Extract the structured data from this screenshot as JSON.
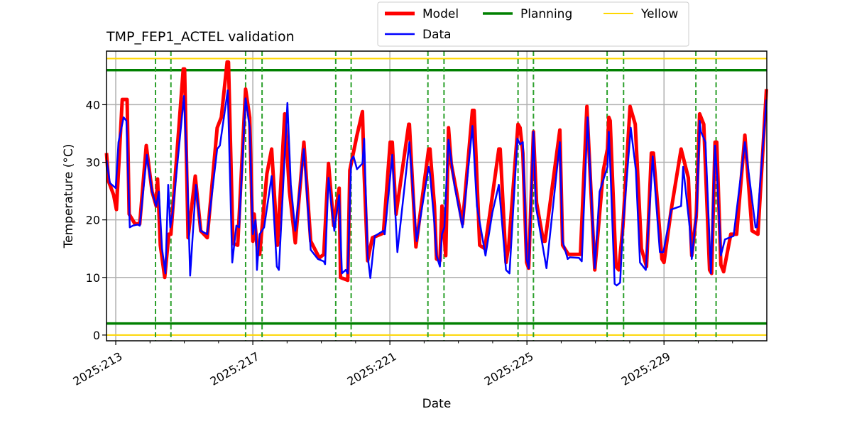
{
  "chart_data": {
    "type": "line",
    "title": "TMP_FEP1_ACTEL validation",
    "xlabel": "Date",
    "ylabel": "Temperature (°C)",
    "xlim": [
      212.73,
      232.0
    ],
    "ylim": [
      -1.0,
      49.3
    ],
    "grid": true,
    "legend_placement": "top-center-outside",
    "x_ticks": [
      {
        "value": 213,
        "label": "2025:213"
      },
      {
        "value": 217,
        "label": "2025:217"
      },
      {
        "value": 221,
        "label": "2025:221"
      },
      {
        "value": 225,
        "label": "2025:225"
      },
      {
        "value": 229,
        "label": "2025:229"
      }
    ],
    "x_minor_ticks": [
      213,
      214,
      215,
      216,
      217,
      218,
      219,
      220,
      221,
      222,
      223,
      224,
      225,
      226,
      227,
      228,
      229,
      230,
      231
    ],
    "y_ticks": [
      {
        "value": 0,
        "label": "0"
      },
      {
        "value": 10,
        "label": "10"
      },
      {
        "value": 20,
        "label": "20"
      },
      {
        "value": 30,
        "label": "30"
      },
      {
        "value": 40,
        "label": "40"
      }
    ],
    "legend": [
      {
        "name": "Model",
        "color": "#ff0000"
      },
      {
        "name": "Planning",
        "color": "#008000"
      },
      {
        "name": "Yellow",
        "color": "#ffd700"
      },
      {
        "name": "Data",
        "color": "#0000ff"
      }
    ],
    "hlines": [
      {
        "series": "Planning",
        "value": 46.0,
        "color": "#008000"
      },
      {
        "series": "Planning",
        "value": 2.0,
        "color": "#008000"
      },
      {
        "series": "Yellow",
        "value": 48.0,
        "color": "#ffd700"
      },
      {
        "series": "Yellow",
        "value": 0.0,
        "color": "#ffd700"
      }
    ],
    "vlines_dashed": {
      "color": "#2ca02c",
      "x": [
        214.16,
        214.61,
        216.79,
        217.27,
        219.42,
        219.87,
        222.11,
        222.58,
        224.74,
        225.19,
        227.34,
        227.82,
        229.93,
        230.52
      ]
    },
    "series": [
      {
        "name": "Model",
        "color": "#ff0000",
        "x": [
          212.73,
          212.79,
          212.94,
          213.02,
          213.19,
          213.33,
          213.39,
          213.56,
          213.7,
          213.89,
          214.06,
          214.18,
          214.22,
          214.3,
          214.43,
          214.55,
          214.61,
          214.97,
          215.01,
          215.11,
          215.32,
          215.48,
          215.67,
          215.96,
          216.08,
          216.25,
          216.29,
          216.42,
          216.56,
          216.79,
          216.91,
          217.0,
          217.04,
          217.12,
          217.2,
          217.41,
          217.55,
          217.72,
          217.93,
          218.07,
          218.24,
          218.49,
          218.69,
          218.94,
          219.07,
          219.21,
          219.36,
          219.52,
          219.56,
          219.77,
          219.83,
          220.04,
          220.2,
          220.25,
          220.35,
          220.49,
          220.81,
          221.01,
          221.07,
          221.18,
          221.55,
          221.57,
          221.76,
          222.13,
          222.17,
          222.3,
          222.36,
          222.46,
          222.52,
          222.63,
          222.71,
          222.79,
          223.12,
          223.41,
          223.46,
          223.62,
          223.77,
          223.97,
          224.18,
          224.22,
          224.39,
          224.47,
          224.74,
          224.8,
          224.88,
          224.99,
          225.05,
          225.19,
          225.28,
          225.48,
          225.53,
          225.96,
          226.04,
          226.21,
          226.56,
          226.75,
          226.98,
          227.23,
          227.35,
          227.39,
          227.43,
          227.6,
          227.68,
          227.8,
          228.01,
          228.16,
          228.34,
          228.49,
          228.63,
          228.69,
          228.94,
          229.0,
          229.21,
          229.5,
          229.71,
          229.81,
          229.94,
          230.04,
          230.16,
          230.33,
          230.39,
          230.49,
          230.54,
          230.66,
          230.74,
          230.95,
          231.12,
          231.36,
          231.57,
          231.74,
          231.99
        ],
        "y": [
          31.6,
          26.7,
          24.3,
          21.8,
          40.9,
          40.9,
          21.0,
          19.3,
          19.3,
          32.9,
          24.9,
          22.4,
          27.1,
          15.6,
          10.0,
          17.5,
          17.5,
          46.2,
          46.2,
          16.9,
          27.6,
          18.1,
          16.9,
          36.0,
          37.8,
          47.4,
          47.4,
          15.9,
          15.6,
          42.7,
          37.8,
          16.3,
          21.0,
          15.6,
          14.0,
          28.0,
          32.3,
          15.6,
          38.4,
          24.9,
          16.0,
          33.5,
          16.3,
          13.4,
          14.0,
          29.8,
          19.0,
          25.5,
          10.0,
          9.5,
          28.6,
          34.7,
          38.8,
          28.0,
          12.9,
          16.9,
          17.7,
          33.5,
          33.5,
          21.0,
          36.6,
          36.6,
          15.3,
          32.3,
          32.3,
          22.4,
          13.2,
          12.9,
          22.4,
          13.8,
          36.0,
          29.8,
          19.3,
          39.0,
          39.0,
          15.6,
          15.0,
          23.3,
          32.3,
          32.3,
          12.6,
          15.6,
          36.6,
          36.0,
          31.6,
          12.6,
          11.6,
          35.3,
          23.0,
          16.3,
          16.3,
          35.6,
          15.6,
          14.0,
          14.0,
          39.7,
          11.3,
          28.6,
          32.3,
          37.8,
          37.2,
          11.9,
          11.3,
          18.8,
          39.7,
          36.6,
          15.0,
          11.9,
          31.6,
          31.6,
          13.2,
          12.6,
          21.8,
          32.3,
          27.3,
          13.8,
          20.6,
          38.4,
          36.6,
          11.3,
          10.7,
          33.5,
          33.5,
          12.2,
          11.0,
          17.5,
          17.5,
          34.7,
          18.1,
          17.5,
          42.7
        ]
      },
      {
        "name": "Data",
        "color": "#0000ff",
        "x": [
          212.73,
          212.83,
          213.0,
          213.08,
          213.23,
          213.31,
          213.41,
          213.5,
          213.64,
          213.7,
          213.91,
          214.06,
          214.18,
          214.26,
          214.35,
          214.45,
          214.53,
          214.59,
          214.66,
          214.99,
          215.09,
          215.17,
          215.34,
          215.48,
          215.67,
          215.96,
          216.04,
          216.27,
          216.4,
          216.52,
          216.6,
          216.79,
          216.91,
          217.0,
          217.08,
          217.12,
          217.2,
          217.33,
          217.55,
          217.7,
          217.76,
          218.01,
          218.11,
          218.24,
          218.49,
          218.69,
          218.9,
          219.07,
          219.11,
          219.21,
          219.38,
          219.52,
          219.6,
          219.71,
          219.77,
          219.87,
          219.94,
          220.04,
          220.2,
          220.25,
          220.35,
          220.43,
          220.56,
          220.81,
          220.85,
          221.07,
          221.22,
          221.57,
          221.78,
          222.13,
          222.17,
          222.3,
          222.36,
          222.46,
          222.52,
          222.59,
          222.71,
          222.88,
          223.12,
          223.41,
          223.54,
          223.79,
          223.99,
          224.18,
          224.39,
          224.49,
          224.72,
          224.8,
          224.88,
          224.99,
          225.05,
          225.19,
          225.26,
          225.57,
          225.96,
          226.04,
          226.19,
          226.25,
          226.52,
          226.6,
          226.77,
          226.98,
          227.12,
          227.35,
          227.39,
          227.43,
          227.56,
          227.62,
          227.72,
          227.8,
          228.03,
          228.18,
          228.3,
          228.47,
          228.67,
          228.88,
          228.98,
          229.21,
          229.5,
          229.56,
          229.75,
          229.81,
          229.96,
          230.04,
          230.08,
          230.21,
          230.37,
          230.49,
          230.56,
          230.66,
          230.78,
          231.03,
          231.36,
          231.67,
          231.71,
          231.99
        ],
        "y": [
          30.4,
          26.4,
          25.5,
          33.5,
          37.8,
          37.2,
          18.7,
          19.0,
          19.2,
          19.0,
          31.3,
          24.9,
          22.4,
          24.9,
          15.0,
          10.7,
          26.1,
          18.7,
          21.2,
          41.5,
          27.3,
          10.3,
          26.1,
          18.1,
          17.5,
          32.3,
          32.9,
          42.5,
          12.6,
          19.0,
          18.7,
          41.1,
          36.0,
          17.5,
          20.0,
          11.3,
          17.5,
          18.7,
          27.6,
          11.9,
          11.3,
          40.3,
          26.1,
          18.1,
          32.3,
          14.8,
          13.2,
          12.8,
          12.3,
          27.3,
          18.1,
          24.3,
          10.7,
          11.3,
          10.7,
          30.4,
          31.0,
          28.8,
          29.8,
          34.1,
          13.8,
          9.9,
          17.2,
          18.1,
          17.5,
          31.3,
          14.4,
          33.5,
          16.3,
          29.2,
          28.0,
          19.3,
          13.8,
          11.9,
          17.5,
          18.7,
          33.9,
          26.1,
          18.7,
          36.3,
          22.4,
          13.8,
          21.2,
          26.1,
          11.3,
          10.7,
          34.1,
          33.1,
          33.5,
          13.2,
          11.6,
          35.3,
          22.4,
          11.6,
          33.5,
          16.3,
          13.2,
          13.5,
          13.4,
          12.8,
          37.8,
          11.6,
          24.9,
          29.2,
          35.3,
          29.8,
          8.9,
          8.6,
          9.1,
          18.7,
          36.0,
          28.6,
          12.6,
          11.3,
          31.0,
          14.4,
          14.4,
          21.8,
          22.4,
          29.2,
          18.7,
          13.2,
          21.8,
          37.2,
          35.3,
          33.5,
          10.7,
          32.9,
          26.7,
          13.8,
          16.6,
          17.2,
          33.5,
          18.7,
          18.7,
          40.9
        ]
      }
    ]
  }
}
